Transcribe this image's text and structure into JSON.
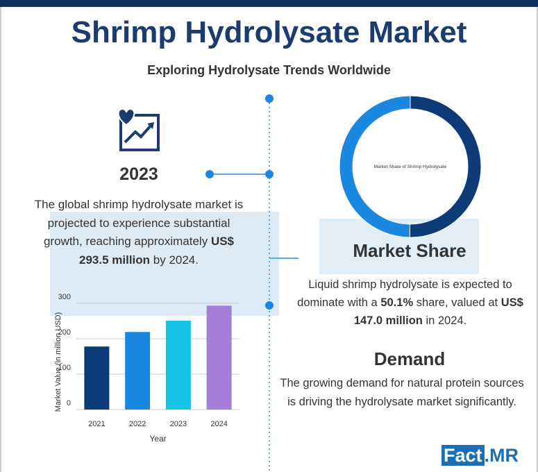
{
  "header": {
    "title": "Shrimp Hydrolysate Market",
    "subtitle": "Exploring Hydrolysate Trends Worldwide"
  },
  "left": {
    "year": "2023",
    "paragraph": [
      "The global shrimp hydrolysate market is projected to experience substantial growth, reaching approximately ",
      "US$ 293.5 million",
      " by 2024."
    ]
  },
  "market_share": {
    "heading": "Market Share",
    "paragraph": [
      "Liquid shrimp hydrolysate is expected to dominate with a ",
      "50.1%",
      " share, valued at ",
      "US$ 147.0 million",
      " in 2024."
    ]
  },
  "demand": {
    "heading": "Demand",
    "paragraph": "The growing demand for natural protein sources is driving the hydrolysate market significantly."
  },
  "logo": [
    "Fact",
    ".MR"
  ],
  "chart_data": [
    {
      "type": "bar",
      "categories": [
        "2021",
        "2022",
        "2023",
        "2024"
      ],
      "values": [
        178,
        219,
        251,
        293.5
      ],
      "colors": [
        "#0d3b78",
        "#1a87e0",
        "#17c3e6",
        "#a67ed8"
      ],
      "ylim": [
        0,
        300
      ],
      "yticks": [
        0,
        100,
        200,
        300
      ],
      "xlabel": "Year",
      "ylabel": "Market Value (in million USD)",
      "grid": true
    },
    {
      "type": "donut",
      "title": "Market Share of Shrimp Hydrolysate",
      "values": [
        50.1,
        49.9
      ],
      "colors": [
        "#0d3b78",
        "#1a87e0"
      ]
    }
  ]
}
